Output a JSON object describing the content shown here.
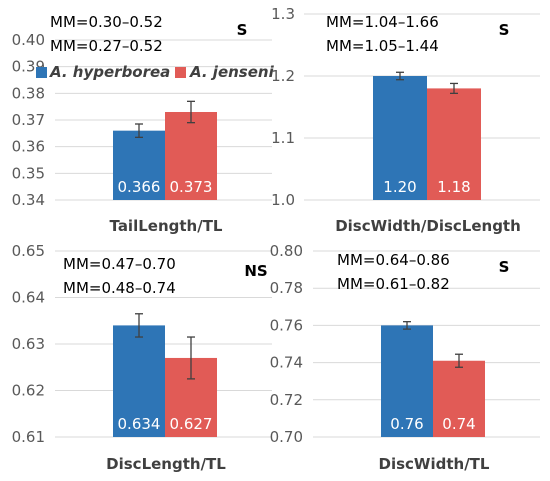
{
  "colors": {
    "hyperborea": "#2e75b6",
    "jenseni": "#e15b56",
    "error": "#404040"
  },
  "legend": [
    "A. hyperborea",
    "A. jenseni"
  ],
  "chart_data": [
    {
      "type": "bar",
      "xlabel": "TailLength/TL",
      "categories": [
        "A. hyperborea",
        "A. jenseni"
      ],
      "values": [
        0.366,
        0.373
      ],
      "value_labels": [
        "0.366",
        "0.373"
      ],
      "errors": [
        0.0025,
        0.004
      ],
      "ylim": [
        0.34,
        0.4
      ],
      "yticks": [
        "0.34",
        "0.35",
        "0.36",
        "0.37",
        "0.38",
        "0.39",
        "0.40"
      ],
      "annotations": [
        "MM=0.30–0.52",
        "MM=0.27–0.52"
      ],
      "significance": "S",
      "grid": true
    },
    {
      "type": "bar",
      "xlabel": "DiscWidth/DiscLength",
      "categories": [
        "A. hyperborea",
        "A. jenseni"
      ],
      "values": [
        1.2,
        1.18
      ],
      "value_labels": [
        "1.20",
        "1.18"
      ],
      "errors": [
        0.006,
        0.008
      ],
      "ylim": [
        1.0,
        1.3
      ],
      "yticks": [
        "1.0",
        "1.1",
        "1.2",
        "1.3"
      ],
      "annotations": [
        "MM=1.04–1.66",
        "MM=1.05–1.44"
      ],
      "significance": "S",
      "grid": true
    },
    {
      "type": "bar",
      "xlabel": "DiscLength/TL",
      "categories": [
        "A. hyperborea",
        "A. jenseni"
      ],
      "values": [
        0.634,
        0.627
      ],
      "value_labels": [
        "0.634",
        "0.627"
      ],
      "errors": [
        0.0025,
        0.0045
      ],
      "ylim": [
        0.61,
        0.65
      ],
      "yticks": [
        "0.61",
        "0.62",
        "0.63",
        "0.64",
        "0.65"
      ],
      "annotations": [
        "MM=0.47–0.70",
        "MM=0.48–0.74"
      ],
      "significance": "NS",
      "grid": true
    },
    {
      "type": "bar",
      "xlabel": "DiscWidth/TL",
      "categories": [
        "A. hyperborea",
        "A. jenseni"
      ],
      "values": [
        0.76,
        0.741
      ],
      "value_labels": [
        "0.76",
        "0.74"
      ],
      "errors": [
        0.002,
        0.0035
      ],
      "ylim": [
        0.7,
        0.8
      ],
      "yticks": [
        "0.70",
        "0.72",
        "0.74",
        "0.76",
        "0.78",
        "0.80"
      ],
      "annotations": [
        "MM=0.64–0.86",
        "MM=0.61–0.82"
      ],
      "significance": "S",
      "grid": true
    }
  ]
}
